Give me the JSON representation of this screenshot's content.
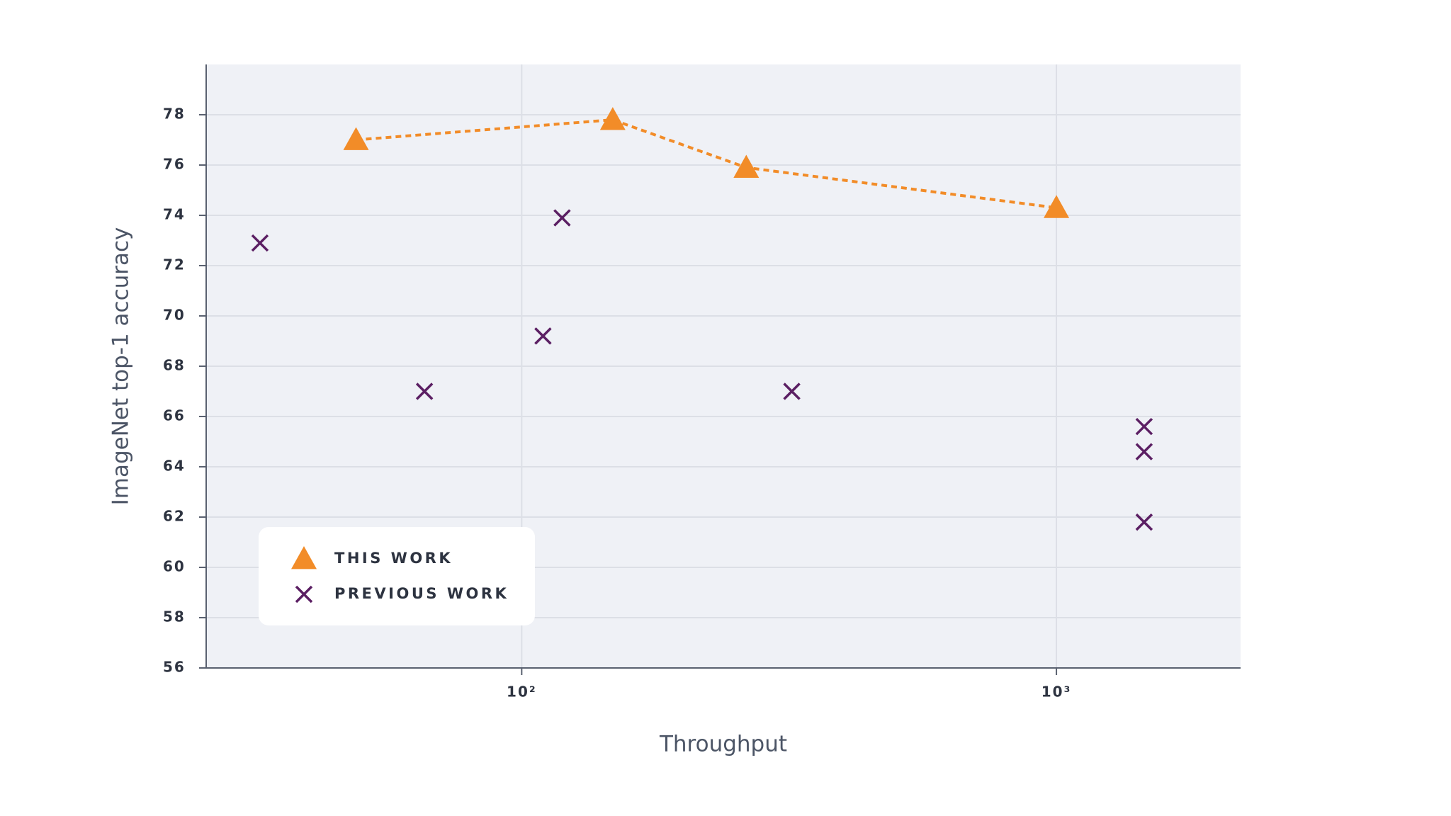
{
  "chart_data": {
    "type": "scatter",
    "xlabel": "Throughput",
    "ylabel": "ImageNet top-1 accuracy",
    "xscale": "log",
    "grid": true,
    "legend": "lower left",
    "xlim": [
      25.7,
      2210
    ],
    "ylim": [
      56,
      80
    ],
    "xticks": [
      {
        "value": 100,
        "label": "10²"
      },
      {
        "value": 1000,
        "label": "10³"
      }
    ],
    "yticks": [
      56,
      58,
      60,
      62,
      64,
      66,
      68,
      70,
      72,
      74,
      76,
      78
    ],
    "series": [
      {
        "name": "THIS WORK",
        "color": "#f28c28",
        "marker": "triangle",
        "line_style": "dashed",
        "x": [
          49,
          148,
          263,
          1000
        ],
        "values": [
          77.0,
          77.8,
          75.9,
          74.3
        ]
      },
      {
        "name": "PREVIOUS WORK",
        "color": "#5b1f63",
        "marker": "x",
        "x": [
          32.4,
          65.8,
          109.6,
          119,
          320,
          1459,
          1459,
          1459
        ],
        "values": [
          72.9,
          67.0,
          69.2,
          73.9,
          67.0,
          65.6,
          64.6,
          61.8
        ]
      }
    ]
  }
}
